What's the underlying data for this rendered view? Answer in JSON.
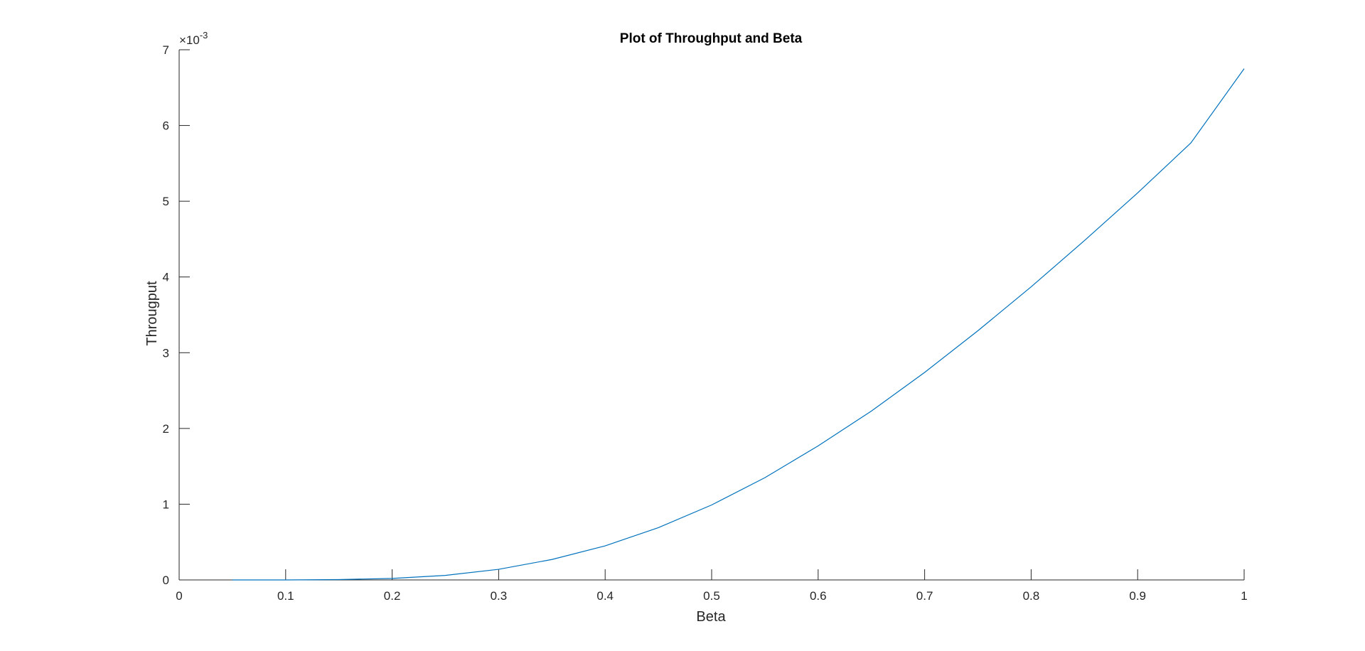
{
  "chart_data": {
    "type": "line",
    "title": "Plot of Throughput and Beta",
    "xlabel": "Beta",
    "ylabel": "Througput",
    "xlim": [
      0,
      1
    ],
    "ylim": [
      0,
      7
    ],
    "y_scale_multiplier": "×10",
    "y_scale_exponent": "-3",
    "xticks": [
      0,
      0.1,
      0.2,
      0.3,
      0.4,
      0.5,
      0.6,
      0.7,
      0.8,
      0.9,
      1
    ],
    "xtick_labels": [
      "0",
      "0.1",
      "0.2",
      "0.3",
      "0.4",
      "0.5",
      "0.6",
      "0.7",
      "0.8",
      "0.9",
      "1"
    ],
    "yticks": [
      0,
      1,
      2,
      3,
      4,
      5,
      6,
      7
    ],
    "ytick_labels": [
      "0",
      "1",
      "2",
      "3",
      "4",
      "5",
      "6",
      "7"
    ],
    "grid": false,
    "series": [
      {
        "color": "#0072BD",
        "x": [
          0.05,
          0.1,
          0.15,
          0.2,
          0.25,
          0.3,
          0.35,
          0.4,
          0.45,
          0.5,
          0.55,
          0.6,
          0.65,
          0.7,
          0.75,
          0.8,
          0.85,
          0.9,
          0.95,
          1.0
        ],
        "y": [
          0.0,
          0.0,
          0.005,
          0.02,
          0.06,
          0.14,
          0.27,
          0.45,
          0.69,
          0.99,
          1.35,
          1.77,
          2.23,
          2.74,
          3.29,
          3.87,
          4.48,
          5.11,
          5.77,
          6.75
        ]
      }
    ]
  }
}
